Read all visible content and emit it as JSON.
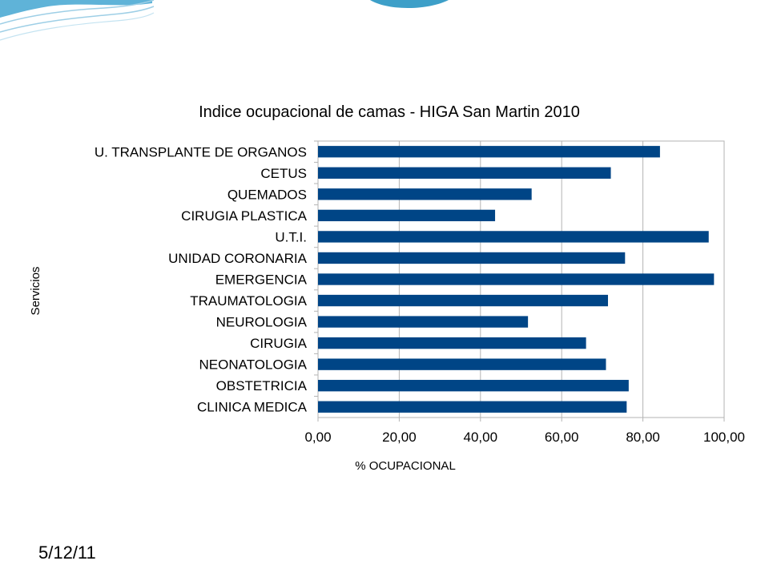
{
  "slide": {
    "date": "5/12/11",
    "colors": {
      "wave_light": "#9ecfe6",
      "wave_dark": "#3d9fc8"
    }
  },
  "chart_data": {
    "type": "bar",
    "orientation": "horizontal",
    "title": "Indice ocupacional de camas - HIGA San Martin 2010",
    "xlabel": "% OCUPACIONAL",
    "ylabel": "Servicios",
    "categories": [
      "U. TRANSPLANTE DE ORGANOS",
      "CETUS",
      "QUEMADOS",
      "CIRUGIA PLASTICA",
      "U.T.I.",
      "UNIDAD CORONARIA",
      "EMERGENCIA",
      "TRAUMATOLOGIA",
      "NEUROLOGIA",
      "CIRUGIA",
      "NEONATOLOGIA",
      "OBSTETRICIA",
      "CLINICA MEDICA"
    ],
    "values": [
      84.2,
      72.1,
      52.6,
      43.6,
      96.2,
      75.6,
      97.5,
      71.4,
      51.7,
      66.0,
      70.9,
      76.5,
      76.0
    ],
    "xlim": [
      0,
      100
    ],
    "xticks": [
      "0,00",
      "20,00",
      "40,00",
      "60,00",
      "80,00",
      "100,00"
    ],
    "xtick_values": [
      0,
      20,
      40,
      60,
      80,
      100
    ],
    "grid": true,
    "legend": "none",
    "bar_color": "#004586"
  }
}
